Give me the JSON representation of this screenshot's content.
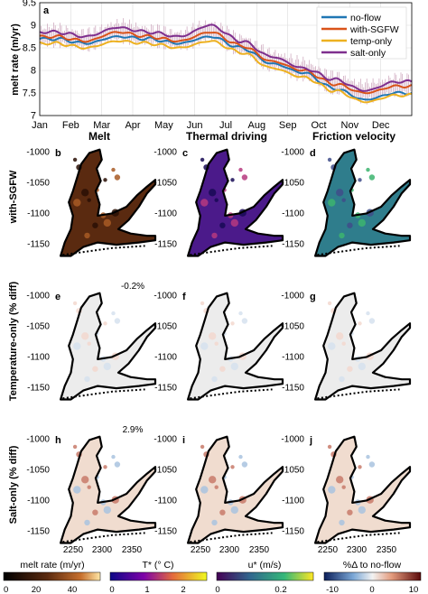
{
  "figure": {
    "colors": {
      "no-flow": "#1f77b4",
      "with-SGFW": "#d95319",
      "temp-only": "#edb120",
      "salt-only": "#7e2f8e",
      "spikes": "#c9a0b8",
      "outline": "#000000",
      "grid": "#dcdcdc"
    }
  },
  "chart_data": [
    {
      "panel": "a",
      "type": "line",
      "ylabel": "melt rate (m/yr)",
      "ylim": [
        7,
        9.5
      ],
      "yticks": [
        "7",
        "7.5",
        "8",
        "8.5",
        "9",
        "9.5"
      ],
      "x": [
        "Jan",
        "Feb",
        "Mar",
        "Apr",
        "May",
        "Jun",
        "Jul",
        "Aug",
        "Sep",
        "Oct",
        "Nov",
        "Dec"
      ],
      "legend_position": "top-right",
      "grid": true,
      "series": [
        {
          "name": "no-flow",
          "values": [
            8.7,
            8.6,
            8.75,
            8.7,
            8.6,
            8.75,
            8.5,
            8.15,
            7.95,
            7.6,
            7.35,
            7.5
          ]
        },
        {
          "name": "with-SGFW",
          "values": [
            8.75,
            8.65,
            8.85,
            8.75,
            8.65,
            8.85,
            8.55,
            8.2,
            8.0,
            7.7,
            7.5,
            7.65
          ]
        },
        {
          "name": "temp-only",
          "values": [
            8.6,
            8.5,
            8.65,
            8.6,
            8.5,
            8.65,
            8.4,
            8.05,
            7.85,
            7.55,
            7.3,
            7.45
          ]
        },
        {
          "name": "salt-only",
          "values": [
            8.85,
            8.75,
            8.95,
            8.85,
            8.75,
            9.0,
            8.65,
            8.3,
            8.05,
            7.8,
            7.55,
            7.75
          ]
        }
      ]
    },
    {
      "type": "heatmap",
      "column_titles": [
        "Melt",
        "Thermal driving",
        "Friction velocity"
      ],
      "row_labels": [
        "with-SGFW",
        "Temperature-only (% diff)",
        "Salt-only (% diff)"
      ],
      "panel_letters": [
        "b",
        "c",
        "d",
        "e",
        "f",
        "g",
        "h",
        "i",
        "j"
      ],
      "annotations": {
        "e": "-0.2%",
        "h": "2.9%"
      },
      "yticks": [
        "-1000",
        "-1050",
        "-1100",
        "-1150"
      ],
      "xticks": [
        "2250",
        "2300",
        "2350"
      ],
      "colorbars": [
        {
          "label": "melt rate (m/yr)",
          "ticks": [
            "0",
            "20",
            "40"
          ],
          "range": [
            0,
            50
          ],
          "colormap": "copper"
        },
        {
          "label": "T* (° C)",
          "ticks": [
            "0",
            "1",
            "2"
          ],
          "range": [
            0,
            2.5
          ],
          "colormap": "plasma"
        },
        {
          "label": "u* (m/s)",
          "ticks": [
            "0",
            "0.2"
          ],
          "range": [
            0,
            0.3
          ],
          "colormap": "viridis"
        },
        {
          "label": "%Δ to no-flow",
          "ticks": [
            "-10",
            "0",
            "10"
          ],
          "range": [
            -10,
            10
          ],
          "colormap": "diverging"
        }
      ]
    }
  ]
}
